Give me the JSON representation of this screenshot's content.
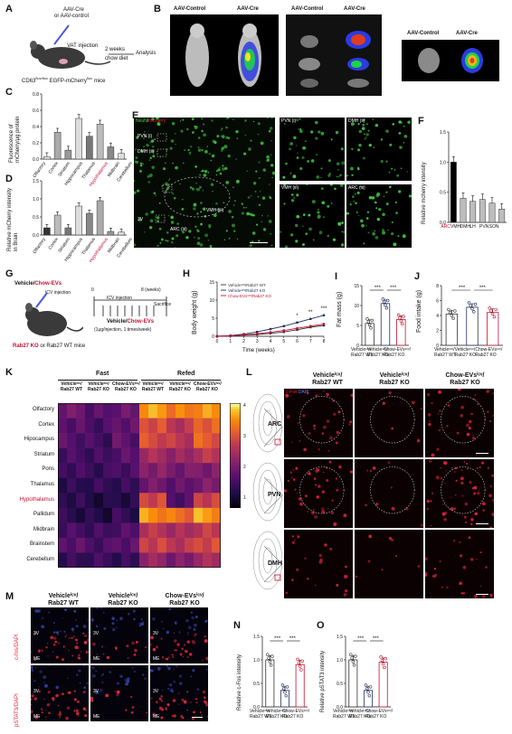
{
  "panels": {
    "A": "A",
    "B": "B",
    "C": "C",
    "D": "D",
    "E": "E",
    "F": "F",
    "G": "G",
    "H": "H",
    "I": "I",
    "J": "J",
    "K": "K",
    "L": "L",
    "M": "M",
    "N": "N",
    "O": "O"
  },
  "A": {
    "label1": "AAV-Cre",
    "label2": "or AAV-control",
    "vat": "VAT injection",
    "weeks": "2 weeks",
    "diet": "chow diet",
    "analysis": "Analysis",
    "mice_pre": "CD63",
    "mice_sup": "flox/flox",
    "mice_post": " EGFP-mCherry",
    "mice_sup2": "flox",
    "mice_end": " mice"
  },
  "B": {
    "ctrl1": "AAV-Control",
    "cre1": "AAV-Cre",
    "ctrl2": "AAV-Control",
    "cre2": "AAV-Cre",
    "ctrl3": "AAV-Control",
    "cre3": "AAV-Cre"
  },
  "C": {
    "ylabel1": "Fluorescence of",
    "ylabel2": "mCherry/µg protein",
    "ticks": [
      "0.8",
      "0.6",
      "0.4",
      "0.2",
      "0.0"
    ]
  },
  "D": {
    "ylabel1": "Relative mCherry intensity",
    "ylabel2": "in Brain",
    "ticks": [
      "1.5",
      "1.0",
      "0.5",
      "0.0"
    ]
  },
  "brain_regions": [
    "Olfactory",
    "Cortex",
    "Striatum",
    "Hippocampus",
    "Thalamus",
    "Hypothalamus",
    "Midbrain",
    "Cerebellum"
  ],
  "E": {
    "neun": "NeuN",
    "mch": "mCherry",
    "pvn": "PVN (i)",
    "dmh": "DMH (ii)",
    "vmh": "VMH (iii)",
    "arc": "ARC (iii)",
    "v3": "3V",
    "pvn_z": "PVN (i)",
    "dmh_z": "DMH (ii)",
    "vmh_z": "VMH (iii)",
    "arc_z": "ARC (iii)"
  },
  "F": {
    "ylabel": "Relative mcherry intensity",
    "categories": [
      "ARC",
      "VMH",
      "DMH",
      "LH",
      "PVN",
      "SON"
    ],
    "ticks": [
      "1.5",
      "1.0",
      "0.5",
      "0.0"
    ]
  },
  "G": {
    "title_v": "Vehicle",
    "title_slash": "/",
    "title_c": "Chow-EVs",
    "icv": "ICV injection",
    "sched0": "0",
    "sched8": "8 (weeks)",
    "icvinj": "ICV injection",
    "sac": "Sacrifice",
    "veh2": "Vehicle",
    "slash2": "/",
    "chow2": "Chow-EVs",
    "dose": "(1µg/injection, 1 times/week)",
    "rab_red": "Rab27 KO",
    "rab_rest": " or Rab27 WT mice"
  },
  "H": {
    "ylabel": "Body weight (g)",
    "xlabel": "Time (weeks)",
    "legend": [
      "Vehicle¹ᶜᵛ/Rab27 WT",
      "Vehicle¹ᶜᵛ/Rab27 KO",
      "Chow-EVs¹ᶜᵛ/Rab27 KO"
    ],
    "xticks": [
      "0",
      "1",
      "2",
      "3",
      "4",
      "5",
      "6",
      "7",
      "8"
    ],
    "yticks": [
      "15",
      "10",
      "5",
      "0"
    ],
    "stars": [
      "*",
      "**",
      "***"
    ]
  },
  "I": {
    "ylabel": "Fat mass (g)",
    "yticks": [
      "15",
      "10",
      "5",
      "0"
    ],
    "stars": [
      "***",
      "***"
    ]
  },
  "J": {
    "ylabel": "Food intake (g)",
    "yticks": [
      "8",
      "6",
      "4",
      "2",
      "0"
    ],
    "stars": [
      "***",
      "***"
    ]
  },
  "groups": [
    {
      "l1": "Vehicle¹ᶜᵛ/",
      "l2": "Rab27 WT"
    },
    {
      "l1": "Vehicle¹ᶜᵛ/",
      "l2": "Rab27 KO"
    },
    {
      "l1": "Chow-EVs¹ᶜᵛ/",
      "l2": "Rab27 KO"
    }
  ],
  "K": {
    "fast": "Fast",
    "refed": "Refed",
    "col_groups": [
      "Vehicleⁱᶜᵛ/",
      "Vehicleⁱᶜᵛ/",
      "Chow-EVsⁱᶜᵛ/",
      "Vehicleⁱᶜᵛ/",
      "Vehicleⁱᶜᵛ/",
      "Chow-EVsⁱᶜᵛ/"
    ],
    "col_sub": [
      "Rab27 WT",
      "Rab27 KO",
      "Rab27 KO",
      "Rab27 WT",
      "Rab27 KO",
      "Rab27 KO"
    ],
    "rows": [
      "Olfactory",
      "Cortex",
      "Hipocampus",
      "Striatum",
      "Pons",
      "Thalamus",
      "Hypothalamus",
      "Pallidum",
      "Midbrain",
      "Brainstem",
      "Cerebellum"
    ],
    "cbar": [
      "4",
      "3",
      "2",
      "1"
    ]
  },
  "L": {
    "col1a": "Vehicleⁱᶜᵛ/",
    "col1b": "Rab27 WT",
    "col2a": "Vehicleⁱᶜᵛ/",
    "col2b": "Rab27 KO",
    "col3a": "Chow-EVsⁱᶜᵛ/",
    "col3b": "Rab27 KO",
    "cfos": "c-Fos",
    "dapi": "DAPI",
    "rows": [
      "ARC",
      "PVN",
      "DMH"
    ]
  },
  "M": {
    "col1a": "Vehicleⁱᶜᵛ/",
    "col1b": "Rab27 WT",
    "col2a": "Vehicleⁱᶜᵛ/",
    "col2b": "Rab27 KO",
    "col3a": "Chow-EVsⁱᶜᵛ/",
    "col3b": "Rab27 KO",
    "row1": "c-fos/DAPI",
    "row2": "pSTAT3/DAPI",
    "v3": "3V",
    "me": "ME"
  },
  "N": {
    "ylabel": "Relative c-Fos intensity",
    "yticks": [
      "1.5",
      "1.0",
      "0.5",
      "0.0"
    ],
    "stars": [
      "***",
      "***"
    ]
  },
  "O": {
    "ylabel": "Relative pSTAT3 intensity",
    "yticks": [
      "1.5",
      "1.0",
      "0.5",
      "0.0"
    ],
    "stars": [
      "***",
      "***"
    ]
  },
  "colors": {
    "red": "#c4122f",
    "navy": "#23305a",
    "dark": "#333333",
    "grey": "#bdbdbd"
  },
  "chart_data": [
    {
      "panel": "C",
      "type": "bar",
      "categories": [
        "Olfactory",
        "Cortex",
        "Striatum",
        "Hippocampus",
        "Thalamus",
        "Hypothalamus",
        "Midbrain",
        "Cerebellum"
      ],
      "values": [
        0.03,
        0.33,
        0.11,
        0.5,
        0.28,
        0.43,
        0.15,
        0.07
      ],
      "ylim": [
        0,
        0.8
      ]
    },
    {
      "panel": "D",
      "type": "bar",
      "categories": [
        "Olfactory",
        "Cortex",
        "Striatum",
        "Hippocampus",
        "Thalamus",
        "Hypothalamus",
        "Midbrain",
        "Cerebellum"
      ],
      "values": [
        0.2,
        0.55,
        0.2,
        0.8,
        0.6,
        0.95,
        0.1,
        0.08
      ],
      "ylim": [
        0,
        1.5
      ]
    },
    {
      "panel": "F",
      "type": "bar",
      "categories": [
        "ARC",
        "VMH",
        "DMH",
        "LH",
        "PVN",
        "SON"
      ],
      "values": [
        1.0,
        0.4,
        0.35,
        0.38,
        0.32,
        0.22
      ],
      "ylim": [
        0,
        1.5
      ]
    },
    {
      "panel": "H",
      "type": "line",
      "x": [
        0,
        1,
        2,
        3,
        4,
        5,
        6,
        7,
        8
      ],
      "series": [
        {
          "name": "Vehicle¹ᶜᵛ/Rab27 WT",
          "values": [
            0,
            0.1,
            0.3,
            0.5,
            0.8,
            1.2,
            1.8,
            2.5,
            3.0
          ]
        },
        {
          "name": "Vehicle¹ᶜᵛ/Rab27 KO",
          "values": [
            0,
            0.2,
            0.6,
            1.2,
            2.0,
            2.8,
            3.8,
            4.8,
            5.8
          ]
        },
        {
          "name": "Chow-EVs¹ᶜᵛ/Rab27 KO",
          "values": [
            0,
            0.1,
            0.4,
            0.7,
            1.1,
            1.6,
            2.2,
            2.8,
            3.4
          ]
        }
      ],
      "ylim": [
        0,
        15
      ]
    },
    {
      "panel": "I",
      "type": "bar",
      "categories": [
        "Vehicle/Rab27 WT",
        "Vehicle/Rab27 KO",
        "Chow-EVs/Rab27 KO"
      ],
      "values": [
        5.5,
        10.5,
        6.5
      ],
      "ylim": [
        0,
        15
      ]
    },
    {
      "panel": "J",
      "type": "bar",
      "categories": [
        "Vehicle/Rab27 WT",
        "Vehicle/Rab27 KO",
        "Chow-EVs/Rab27 KO"
      ],
      "values": [
        4.2,
        5.1,
        4.4
      ],
      "ylim": [
        0,
        8
      ]
    },
    {
      "panel": "K",
      "type": "heatmap",
      "rows": [
        "Olfactory",
        "Cortex",
        "Hipocampus",
        "Striatum",
        "Pons",
        "Thalamus",
        "Hypothalamus",
        "Pallidum",
        "Midbrain",
        "Brainstem",
        "Cerebellum"
      ],
      "columns": [
        "Fast Veh WT",
        "Fast Veh KO",
        "Fast EVs KO",
        "Refed Veh WT",
        "Refed Veh KO",
        "Refed EVs KO"
      ],
      "values": [
        [
          1.6,
          1.3,
          1.5,
          3.6,
          3.3,
          3.5
        ],
        [
          1.3,
          1.1,
          1.4,
          2.8,
          2.4,
          3.0
        ],
        [
          1.2,
          1.0,
          1.3,
          2.7,
          2.4,
          2.9
        ],
        [
          1.0,
          0.9,
          1.2,
          2.1,
          1.9,
          2.3
        ],
        [
          0.9,
          0.8,
          1.0,
          1.7,
          1.5,
          1.6
        ],
        [
          0.8,
          0.9,
          0.9,
          1.6,
          1.4,
          1.7
        ],
        [
          0.8,
          0.6,
          0.7,
          2.7,
          1.2,
          2.6
        ],
        [
          0.7,
          0.6,
          0.8,
          3.4,
          3.1,
          3.5
        ],
        [
          1.0,
          0.9,
          1.1,
          2.3,
          2.1,
          2.4
        ],
        [
          1.2,
          1.0,
          1.2,
          2.5,
          2.3,
          2.6
        ],
        [
          0.9,
          1.0,
          0.9,
          2.0,
          1.7,
          2.2
        ]
      ],
      "ylim": [
        0,
        4
      ]
    },
    {
      "panel": "N",
      "type": "bar",
      "categories": [
        "Vehicle/Rab27 WT",
        "Vehicle/Rab27 KO",
        "Chow-EVs/Rab27 KO"
      ],
      "values": [
        1.0,
        0.35,
        0.9
      ],
      "ylim": [
        0,
        1.5
      ]
    },
    {
      "panel": "O",
      "type": "bar",
      "categories": [
        "Vehicle/Rab27 WT",
        "Vehicle/Rab27 KO",
        "Chow-EVs/Rab27 KO"
      ],
      "values": [
        1.0,
        0.35,
        0.95
      ],
      "ylim": [
        0,
        1.5
      ]
    }
  ]
}
